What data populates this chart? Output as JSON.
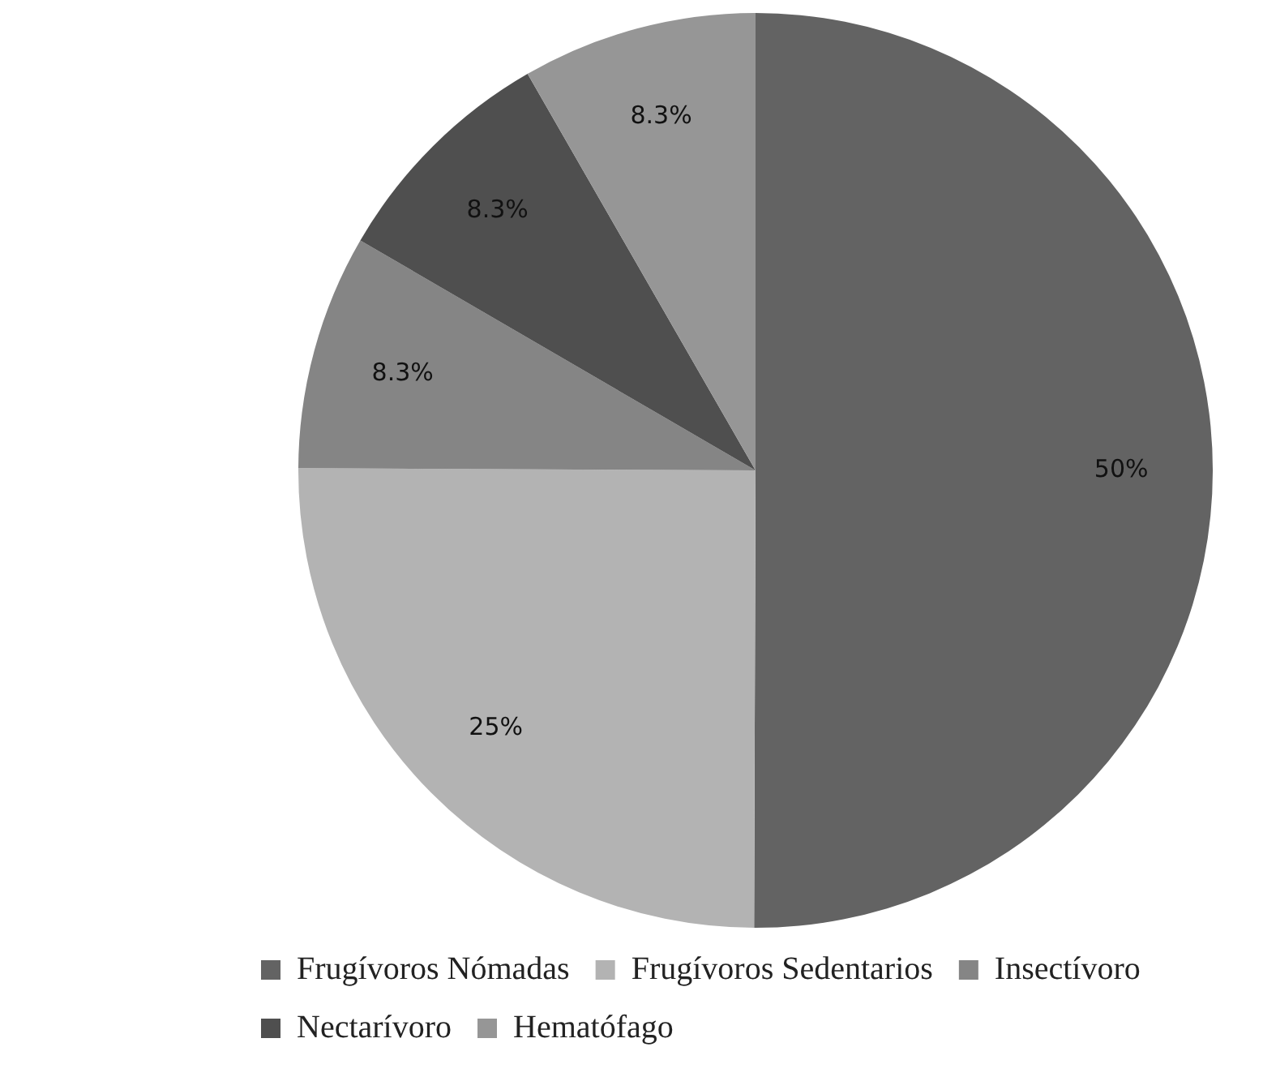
{
  "chart_data": {
    "type": "pie",
    "categories": [
      "Frugívoros Nómadas",
      "Frugívoros Sedentarios",
      "Insectívoro",
      "Nectarívoro",
      "Hematófago"
    ],
    "values": [
      50,
      25,
      8.3,
      8.3,
      8.3
    ],
    "value_labels": [
      "50%",
      "25%",
      "8.3%",
      "8.3%",
      "8.3%"
    ],
    "colors": [
      "#636363",
      "#b3b3b3",
      "#858585",
      "#4f4f4f",
      "#969696"
    ],
    "legend": "bottom"
  }
}
